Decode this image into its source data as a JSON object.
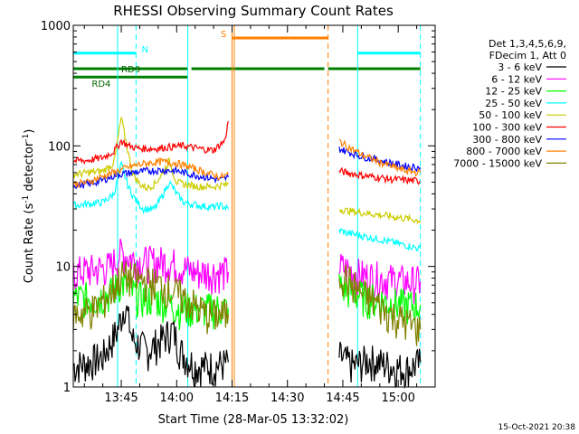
{
  "chart_data": {
    "type": "line",
    "title": "RHESSI Observing Summary Count Rates",
    "xlabel": "Start Time (28-Mar-05 13:32:02)",
    "ylabel_main": "Count Rate (s",
    "ylabel_sup1": "-1",
    "ylabel_mid": " detector",
    "ylabel_sup2": "-1",
    "ylabel_end": ")",
    "y_scale": "log",
    "ylim": [
      1,
      1000
    ],
    "xlim_minutes": [
      0,
      98
    ],
    "x_ticks": [
      {
        "label": "13:45",
        "value": 13
      },
      {
        "label": "14:00",
        "value": 28
      },
      {
        "label": "14:15",
        "value": 43
      },
      {
        "label": "14:30",
        "value": 58
      },
      {
        "label": "14:45",
        "value": 73
      },
      {
        "label": "15:00",
        "value": 88
      }
    ],
    "y_ticks": [
      {
        "label": "1",
        "value": 1
      },
      {
        "label": "10",
        "value": 10
      },
      {
        "label": "100",
        "value": 100
      },
      {
        "label": "1000",
        "value": 1000
      }
    ],
    "legend_header": [
      "Det 1,3,4,5,6,9,",
      "FDecim 1, Att 0"
    ],
    "series": [
      {
        "name": "3 - 6 keV",
        "color": "#000000",
        "segments": [
          [
            [
              0,
              1.5
            ],
            [
              4,
              1.6
            ],
            [
              8,
              1.8
            ],
            [
              12,
              3
            ],
            [
              14,
              5
            ],
            [
              16,
              2.5
            ],
            [
              20,
              2
            ],
            [
              24,
              2.5
            ],
            [
              27,
              3
            ],
            [
              29,
              2
            ],
            [
              33,
              1.5
            ],
            [
              38,
              1.5
            ],
            [
              42,
              1.6
            ]
          ],
          [
            [
              72,
              1.8
            ],
            [
              76,
              1.5
            ],
            [
              80,
              1.7
            ],
            [
              86,
              1.5
            ],
            [
              90,
              1.4
            ],
            [
              94,
              1.6
            ]
          ]
        ]
      },
      {
        "name": "6 - 12 keV",
        "color": "#ff00ff",
        "segments": [
          [
            [
              0,
              9
            ],
            [
              6,
              9.5
            ],
            [
              10,
              10
            ],
            [
              13,
              13
            ],
            [
              15,
              12
            ],
            [
              18,
              11
            ],
            [
              22,
              11
            ],
            [
              26,
              11
            ],
            [
              29,
              10
            ],
            [
              33,
              9
            ],
            [
              38,
              9
            ],
            [
              42,
              9
            ]
          ],
          [
            [
              72,
              10
            ],
            [
              74,
              9.5
            ],
            [
              78,
              8.5
            ],
            [
              84,
              8
            ],
            [
              90,
              7.5
            ],
            [
              94,
              7.5
            ]
          ]
        ]
      },
      {
        "name": "12 - 25 keV",
        "color": "#00ff00",
        "segments": [
          [
            [
              0,
              5.5
            ],
            [
              6,
              5.5
            ],
            [
              10,
              6
            ],
            [
              13,
              7.5
            ],
            [
              15,
              6.5
            ],
            [
              18,
              5.5
            ],
            [
              22,
              5.5
            ],
            [
              26,
              5
            ],
            [
              29,
              4.5
            ],
            [
              33,
              4.5
            ],
            [
              38,
              4.5
            ],
            [
              42,
              4.5
            ]
          ],
          [
            [
              72,
              7
            ],
            [
              76,
              6
            ],
            [
              80,
              5.5
            ],
            [
              86,
              5
            ],
            [
              90,
              4.8
            ],
            [
              94,
              4.8
            ]
          ]
        ]
      },
      {
        "name": "25 - 50 keV",
        "color": "#00ffff",
        "segments": [
          [
            [
              0,
              32
            ],
            [
              4,
              33
            ],
            [
              8,
              34
            ],
            [
              11,
              40
            ],
            [
              13,
              70
            ],
            [
              15,
              45
            ],
            [
              17,
              35
            ],
            [
              19,
              30
            ],
            [
              22,
              30
            ],
            [
              24,
              38
            ],
            [
              26,
              50
            ],
            [
              27,
              45
            ],
            [
              28,
              40
            ],
            [
              30,
              34
            ],
            [
              34,
              32
            ],
            [
              38,
              31
            ],
            [
              40,
              32
            ],
            [
              42,
              30
            ]
          ],
          [
            [
              72,
              20
            ],
            [
              74,
              19
            ],
            [
              78,
              18
            ],
            [
              82,
              17
            ],
            [
              86,
              16
            ],
            [
              90,
              15
            ],
            [
              94,
              14
            ]
          ]
        ]
      },
      {
        "name": "50 - 100 keV",
        "color": "#cccc00",
        "segments": [
          [
            [
              0,
              58
            ],
            [
              4,
              60
            ],
            [
              8,
              62
            ],
            [
              11,
              72
            ],
            [
              13,
              170
            ],
            [
              14,
              120
            ],
            [
              16,
              60
            ],
            [
              18,
              48
            ],
            [
              20,
              45
            ],
            [
              22,
              48
            ],
            [
              24,
              58
            ],
            [
              26,
              75
            ],
            [
              27,
              60
            ],
            [
              28,
              50
            ],
            [
              30,
              48
            ],
            [
              34,
              46
            ],
            [
              38,
              46
            ],
            [
              42,
              48
            ]
          ],
          [
            [
              72,
              30
            ],
            [
              74,
              29
            ],
            [
              78,
              28
            ],
            [
              82,
              27
            ],
            [
              86,
              26
            ],
            [
              90,
              25
            ],
            [
              94,
              24
            ]
          ]
        ]
      },
      {
        "name": "100 - 300 keV",
        "color": "#ff0000",
        "segments": [
          [
            [
              0,
              75
            ],
            [
              4,
              76
            ],
            [
              8,
              80
            ],
            [
              11,
              90
            ],
            [
              13,
              110
            ],
            [
              15,
              100
            ],
            [
              18,
              95
            ],
            [
              22,
              95
            ],
            [
              26,
              98
            ],
            [
              30,
              100
            ],
            [
              34,
              95
            ],
            [
              38,
              92
            ],
            [
              41,
              110
            ],
            [
              42,
              160
            ]
          ],
          [
            [
              72,
              62
            ],
            [
              74,
              60
            ],
            [
              78,
              57
            ],
            [
              82,
              55
            ],
            [
              86,
              53
            ],
            [
              90,
              52
            ],
            [
              94,
              51
            ]
          ]
        ]
      },
      {
        "name": "300 - 800 keV",
        "color": "#0000ff",
        "segments": [
          [
            [
              0,
              47
            ],
            [
              4,
              48
            ],
            [
              8,
              52
            ],
            [
              12,
              58
            ],
            [
              16,
              60
            ],
            [
              20,
              62
            ],
            [
              24,
              63
            ],
            [
              28,
              62
            ],
            [
              32,
              58
            ],
            [
              36,
              55
            ],
            [
              40,
              52
            ],
            [
              42,
              55
            ]
          ],
          [
            [
              72,
              95
            ],
            [
              74,
              90
            ],
            [
              78,
              82
            ],
            [
              82,
              77
            ],
            [
              86,
              72
            ],
            [
              90,
              68
            ],
            [
              94,
              66
            ]
          ]
        ]
      },
      {
        "name": "800 - 7000 keV",
        "color": "#ff8000",
        "segments": [
          [
            [
              0,
              48
            ],
            [
              4,
              50
            ],
            [
              8,
              56
            ],
            [
              12,
              62
            ],
            [
              16,
              68
            ],
            [
              20,
              72
            ],
            [
              24,
              74
            ],
            [
              28,
              72
            ],
            [
              32,
              66
            ],
            [
              36,
              60
            ],
            [
              40,
              55
            ],
            [
              42,
              58
            ]
          ],
          [
            [
              72,
              110
            ],
            [
              74,
              100
            ],
            [
              78,
              85
            ],
            [
              82,
              75
            ],
            [
              86,
              68
            ],
            [
              90,
              62
            ],
            [
              94,
              60
            ]
          ]
        ]
      },
      {
        "name": "7000 - 15000 keV",
        "color": "#808000",
        "segments": [
          [
            [
              0,
              4
            ],
            [
              6,
              4.5
            ],
            [
              10,
              6
            ],
            [
              13,
              8.5
            ],
            [
              16,
              8
            ],
            [
              20,
              7.5
            ],
            [
              24,
              7
            ],
            [
              28,
              6
            ],
            [
              32,
              5
            ],
            [
              36,
              4
            ],
            [
              40,
              4
            ],
            [
              42,
              4
            ]
          ],
          [
            [
              72,
              9
            ],
            [
              74,
              8
            ],
            [
              78,
              6
            ],
            [
              82,
              5
            ],
            [
              86,
              4
            ],
            [
              90,
              3.5
            ],
            [
              94,
              3
            ]
          ]
        ]
      }
    ],
    "flags": [
      {
        "name": "N",
        "color": "#00ffff",
        "segments": [
          [
            0,
            17
          ],
          [
            77,
            94
          ]
        ],
        "level": 0.923
      },
      {
        "name": "RD0",
        "color": "#008000",
        "segments": [
          [
            0,
            31
          ],
          [
            32,
            68
          ],
          [
            69,
            94
          ]
        ],
        "level": 0.88
      },
      {
        "name": "RD4",
        "color": "#008000",
        "segments": [
          [
            0,
            17
          ],
          [
            17,
            31
          ]
        ],
        "level": 0.857
      },
      {
        "name": "S",
        "color": "#ff8000",
        "segments": [
          [
            43,
            69
          ]
        ],
        "level": 0.965
      }
    ],
    "vlines": [
      {
        "value": 0,
        "color": "#00ffff",
        "style": "solid"
      },
      {
        "value": 12,
        "color": "#00ffff",
        "style": "solid"
      },
      {
        "value": 17,
        "color": "#00ffff",
        "style": "dashed"
      },
      {
        "value": 31,
        "color": "#00ffff",
        "style": "solid"
      },
      {
        "value": 43,
        "color": "#ff8000",
        "style": "solid"
      },
      {
        "value": 43.6,
        "color": "#ff8000",
        "style": "solid"
      },
      {
        "value": 69,
        "color": "#ff8000",
        "style": "dashed"
      },
      {
        "value": 77,
        "color": "#00ffff",
        "style": "solid"
      },
      {
        "value": 94,
        "color": "#00ffff",
        "style": "dashed"
      }
    ],
    "grid": false,
    "legend_position": "right",
    "timestamp": "15-Oct-2021 20:38"
  }
}
